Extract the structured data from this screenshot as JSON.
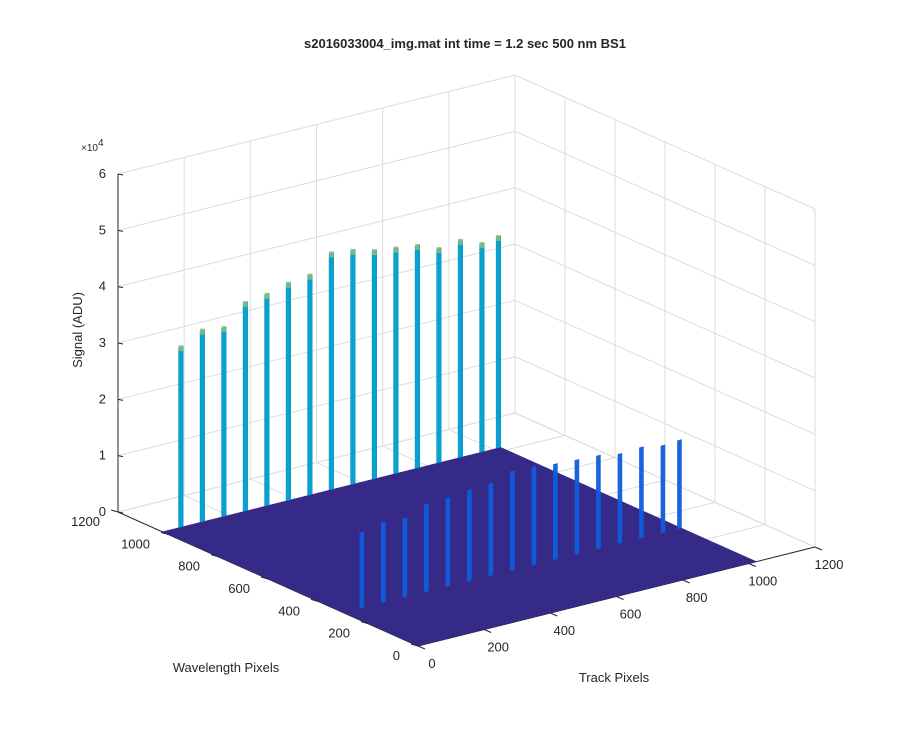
{
  "chart_data": {
    "type": "surface",
    "title": "s2016033004_img.mat int time = 1.2 sec  500 nm BS1",
    "xlabel": "Track Pixels",
    "ylabel": "Wavelength Pixels",
    "zlabel": "Signal (ADU)",
    "xlim": [
      0,
      1200
    ],
    "ylim": [
      0,
      1200
    ],
    "zlim": [
      0,
      60000
    ],
    "x_ticks": [
      "0",
      "200",
      "400",
      "600",
      "800",
      "1000",
      "1200"
    ],
    "y_ticks": [
      "0",
      "200",
      "400",
      "600",
      "800",
      "1000",
      "1200"
    ],
    "z_ticks": [
      "0",
      "1",
      "2",
      "3",
      "4",
      "5",
      "6"
    ],
    "z_multiplier": "×10",
    "z_exponent": "4",
    "grid": true,
    "surface_extent": {
      "x": [
        0,
        1024
      ],
      "y": [
        0,
        1024
      ]
    },
    "band_span_y": [
      300,
      1024
    ],
    "base_level": 0,
    "colormap": [
      "#352a87",
      "#0f5cdd",
      "#1481d6",
      "#06a4ca",
      "#2eb7a4",
      "#87bf77",
      "#d1bb59",
      "#fbcc27"
    ],
    "fiber_tracks": [
      {
        "x": 50,
        "peak": 32000
      },
      {
        "x": 115,
        "peak": 34000
      },
      {
        "x": 180,
        "peak": 33500
      },
      {
        "x": 245,
        "peak": 37000
      },
      {
        "x": 310,
        "peak": 37500
      },
      {
        "x": 375,
        "peak": 38500
      },
      {
        "x": 440,
        "peak": 39000
      },
      {
        "x": 505,
        "peak": 42000
      },
      {
        "x": 570,
        "peak": 41500
      },
      {
        "x": 635,
        "peak": 40500
      },
      {
        "x": 700,
        "peak": 40000
      },
      {
        "x": 765,
        "peak": 39500
      },
      {
        "x": 830,
        "peak": 38000
      },
      {
        "x": 895,
        "peak": 38500
      },
      {
        "x": 960,
        "peak": 37000
      },
      {
        "x": 1010,
        "peak": 37500
      }
    ]
  }
}
